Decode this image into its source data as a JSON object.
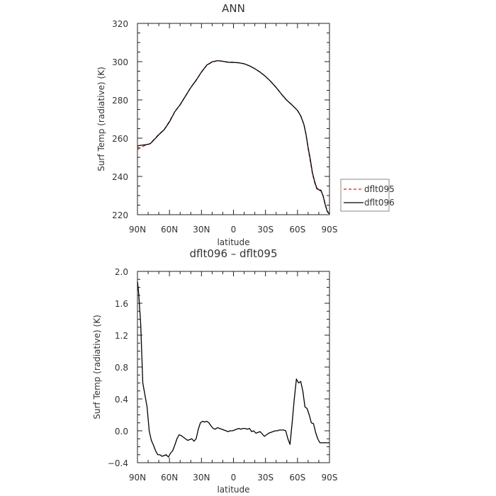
{
  "chart_data": [
    {
      "type": "line",
      "title": "ANN",
      "xlabel": "latitude",
      "ylabel": "Surf Temp (radiative) (K)",
      "xlim": [
        90,
        -90
      ],
      "ylim": [
        220,
        320
      ],
      "xticks": [
        90,
        60,
        30,
        0,
        -30,
        -60,
        -90
      ],
      "xtick_labels": [
        "90N",
        "60N",
        "30N",
        "0",
        "30S",
        "60S",
        "90S"
      ],
      "yticks": [
        220,
        240,
        260,
        280,
        300,
        320
      ],
      "ytick_labels": [
        "220",
        "240",
        "260",
        "280",
        "300",
        "320"
      ],
      "legend": {
        "placement": "right-outside"
      },
      "series": [
        {
          "name": "dflt095",
          "color": "#cc2222",
          "dash": true,
          "x": [
            90,
            88,
            85,
            82,
            78,
            75,
            70,
            65,
            60,
            55,
            50,
            45,
            40,
            35,
            30,
            25,
            20,
            15,
            10,
            5,
            0,
            -5,
            -10,
            -15,
            -20,
            -25,
            -30,
            -35,
            -40,
            -45,
            -50,
            -55,
            -60,
            -63,
            -66,
            -68,
            -70,
            -72,
            -74,
            -76,
            -78,
            -80,
            -82,
            -84,
            -86,
            -88,
            -90
          ],
          "y": [
            254,
            254.8,
            255.7,
            256.4,
            257.2,
            259,
            262,
            264.5,
            268.8,
            273.9,
            277.5,
            282,
            286.5,
            290.2,
            294.5,
            298.1,
            299.8,
            300.5,
            300.2,
            299.7,
            299.6,
            299.4,
            298.9,
            297.8,
            296.3,
            294.5,
            292.3,
            289.6,
            286.5,
            283,
            279.8,
            277.3,
            274.5,
            271.7,
            267.2,
            262,
            254.4,
            248,
            241.5,
            237,
            233.6,
            232.6,
            232.5,
            230,
            225.5,
            221.8,
            220.5
          ]
        },
        {
          "name": "dflt096",
          "color": "#000000",
          "dash": false,
          "x": [
            90,
            88,
            85,
            82,
            78,
            75,
            70,
            65,
            60,
            55,
            50,
            45,
            40,
            35,
            30,
            25,
            20,
            15,
            10,
            5,
            0,
            -5,
            -10,
            -15,
            -20,
            -25,
            -30,
            -35,
            -40,
            -45,
            -50,
            -55,
            -60,
            -63,
            -66,
            -68,
            -70,
            -72,
            -74,
            -76,
            -78,
            -80,
            -82,
            -84,
            -86,
            -88,
            -90
          ],
          "y": [
            255.9,
            256.2,
            256.4,
            256.6,
            257.1,
            258.8,
            261.8,
            264.4,
            268.5,
            273.8,
            277.5,
            282,
            286.5,
            290.3,
            294.6,
            298.2,
            299.9,
            300.5,
            300.2,
            299.7,
            299.6,
            299.4,
            298.9,
            297.8,
            296.3,
            294.5,
            292.3,
            289.6,
            286.5,
            283,
            279.8,
            277.3,
            274.5,
            271.7,
            267.2,
            262,
            255,
            249,
            242,
            237.5,
            234,
            233,
            232.8,
            229.8,
            225.2,
            221.5,
            220.4
          ]
        }
      ]
    },
    {
      "type": "line",
      "title": "dflt096 – dflt095",
      "xlabel": "latitude",
      "ylabel": "Surf Temp (radiative) (K)",
      "xlim": [
        90,
        -90
      ],
      "ylim": [
        -0.4,
        2.0
      ],
      "xticks": [
        90,
        60,
        30,
        0,
        -30,
        -60,
        -90
      ],
      "xtick_labels": [
        "90N",
        "60N",
        "30N",
        "0",
        "30S",
        "60S",
        "90S"
      ],
      "yticks": [
        -0.4,
        0.0,
        0.4,
        0.8,
        1.2,
        1.6,
        2.0
      ],
      "ytick_labels": [
        "−0.4",
        "0.0",
        "0.4",
        "0.8",
        "1.2",
        "1.6",
        "2.0"
      ],
      "series": [
        {
          "color": "#000000",
          "x": [
            90,
            89,
            87,
            85,
            83,
            81,
            79,
            77,
            75,
            73,
            71,
            69,
            67,
            65,
            63,
            61,
            59,
            57,
            55,
            53,
            51,
            49,
            47,
            45,
            43,
            41,
            39,
            37,
            35,
            33,
            31,
            29,
            27,
            25,
            23,
            21,
            19,
            17,
            15,
            13,
            11,
            9,
            7,
            5,
            3,
            1,
            -1,
            -3,
            -5,
            -7,
            -9,
            -11,
            -13,
            -15,
            -17,
            -19,
            -21,
            -23,
            -25,
            -27,
            -29,
            -31,
            -33,
            -35,
            -37,
            -39,
            -41,
            -43,
            -45,
            -47,
            -49,
            -51,
            -53,
            -55,
            -57,
            -59,
            -61,
            -63,
            -65,
            -67,
            -69,
            -71,
            -73,
            -75,
            -77,
            -79,
            -81,
            -83,
            -85,
            -87,
            -89,
            -90
          ],
          "y": [
            1.87,
            1.75,
            1.35,
            0.6,
            0.45,
            0.3,
            0.0,
            -0.12,
            -0.18,
            -0.25,
            -0.3,
            -0.3,
            -0.32,
            -0.31,
            -0.3,
            -0.33,
            -0.28,
            -0.25,
            -0.18,
            -0.1,
            -0.05,
            -0.06,
            -0.08,
            -0.1,
            -0.12,
            -0.11,
            -0.1,
            -0.13,
            -0.1,
            0.02,
            0.1,
            0.12,
            0.11,
            0.12,
            0.1,
            0.06,
            0.03,
            0.02,
            0.04,
            0.03,
            0.02,
            0.01,
            0.0,
            -0.01,
            0.0,
            0.0,
            0.01,
            0.02,
            0.03,
            0.02,
            0.03,
            0.03,
            0.02,
            0.03,
            -0.01,
            0.0,
            -0.03,
            -0.02,
            -0.01,
            -0.04,
            -0.07,
            -0.05,
            -0.03,
            -0.02,
            -0.01,
            0.0,
            0.0,
            0.01,
            0.01,
            0.01,
            0.0,
            -0.1,
            -0.17,
            0.1,
            0.4,
            0.65,
            0.6,
            0.62,
            0.5,
            0.3,
            0.28,
            0.2,
            0.1,
            0.09,
            -0.02,
            -0.1,
            -0.15,
            -0.15,
            -0.15,
            -0.15,
            -0.15,
            -0.15
          ]
        }
      ]
    }
  ]
}
